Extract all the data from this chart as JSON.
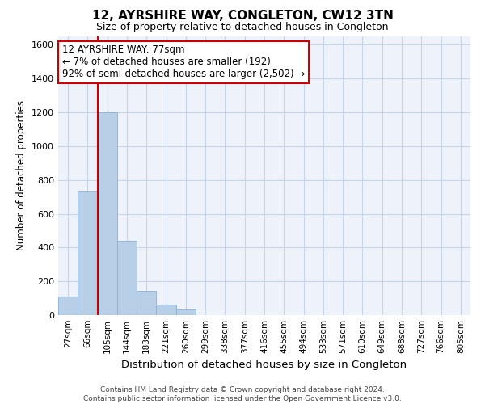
{
  "title": "12, AYRSHIRE WAY, CONGLETON, CW12 3TN",
  "subtitle": "Size of property relative to detached houses in Congleton",
  "xlabel": "Distribution of detached houses by size in Congleton",
  "ylabel": "Number of detached properties",
  "bar_color": "#b8cfe8",
  "bar_edge_color": "#8ab0d8",
  "categories": [
    "27sqm",
    "66sqm",
    "105sqm",
    "144sqm",
    "183sqm",
    "221sqm",
    "260sqm",
    "299sqm",
    "338sqm",
    "377sqm",
    "416sqm",
    "455sqm",
    "494sqm",
    "533sqm",
    "571sqm",
    "610sqm",
    "649sqm",
    "688sqm",
    "727sqm",
    "766sqm",
    "805sqm"
  ],
  "values": [
    110,
    730,
    1200,
    440,
    145,
    60,
    35,
    0,
    0,
    0,
    0,
    0,
    0,
    0,
    0,
    0,
    0,
    0,
    0,
    0,
    0
  ],
  "ylim": [
    0,
    1650
  ],
  "yticks": [
    0,
    200,
    400,
    600,
    800,
    1000,
    1200,
    1400,
    1600
  ],
  "red_line_x": 1.5,
  "annotation_text": "12 AYRSHIRE WAY: 77sqm\n← 7% of detached houses are smaller (192)\n92% of semi-detached houses are larger (2,502) →",
  "annotation_box_color": "#ffffff",
  "annotation_box_edge_color": "#cc0000",
  "footer": "Contains HM Land Registry data © Crown copyright and database right 2024.\nContains public sector information licensed under the Open Government Licence v3.0.",
  "grid_color": "#c8d4e8",
  "background_color": "#eef2fa"
}
